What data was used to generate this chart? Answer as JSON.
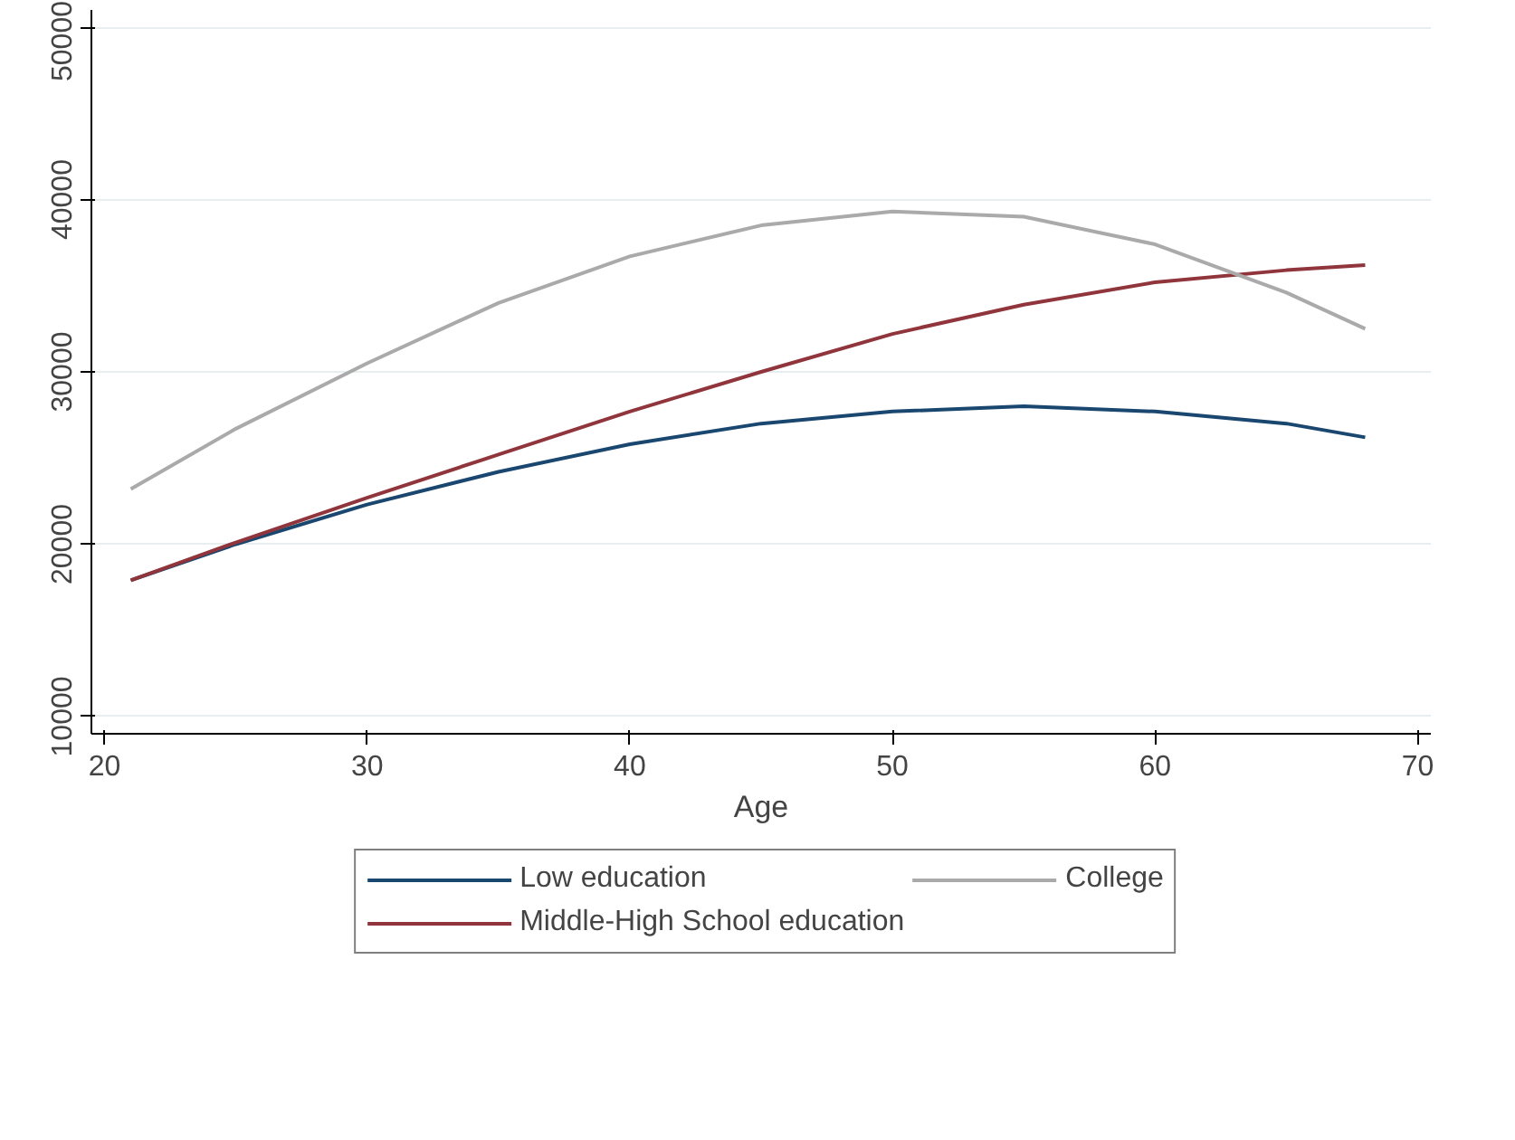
{
  "chart_data": {
    "type": "line",
    "xlabel": "Age",
    "x": [
      21,
      25,
      30,
      35,
      40,
      45,
      50,
      55,
      60,
      65,
      68
    ],
    "series": [
      {
        "name": "Low education",
        "color": "#1a476f",
        "values": [
          17900,
          20000,
          22300,
          24200,
          25800,
          27000,
          27700,
          28000,
          27700,
          27000,
          26200
        ]
      },
      {
        "name": "Middle-High School education",
        "color": "#90353b",
        "values": [
          17900,
          20100,
          22700,
          25200,
          27700,
          30000,
          32200,
          33900,
          35200,
          35900,
          36200
        ]
      },
      {
        "name": "College",
        "color": "#aaaaaa",
        "values": [
          23200,
          26700,
          30500,
          34000,
          36700,
          38500,
          39300,
          39000,
          37400,
          34600,
          32500
        ]
      }
    ],
    "xlim": [
      19.5,
      70.5
    ],
    "ylim": [
      9000,
      51000
    ],
    "xticks": [
      20,
      30,
      40,
      50,
      60,
      70
    ],
    "yticks": [
      10000,
      20000,
      30000,
      40000,
      50000
    ],
    "grid": "y",
    "legend": "bottom",
    "marker": "none",
    "line_style": "solid"
  }
}
